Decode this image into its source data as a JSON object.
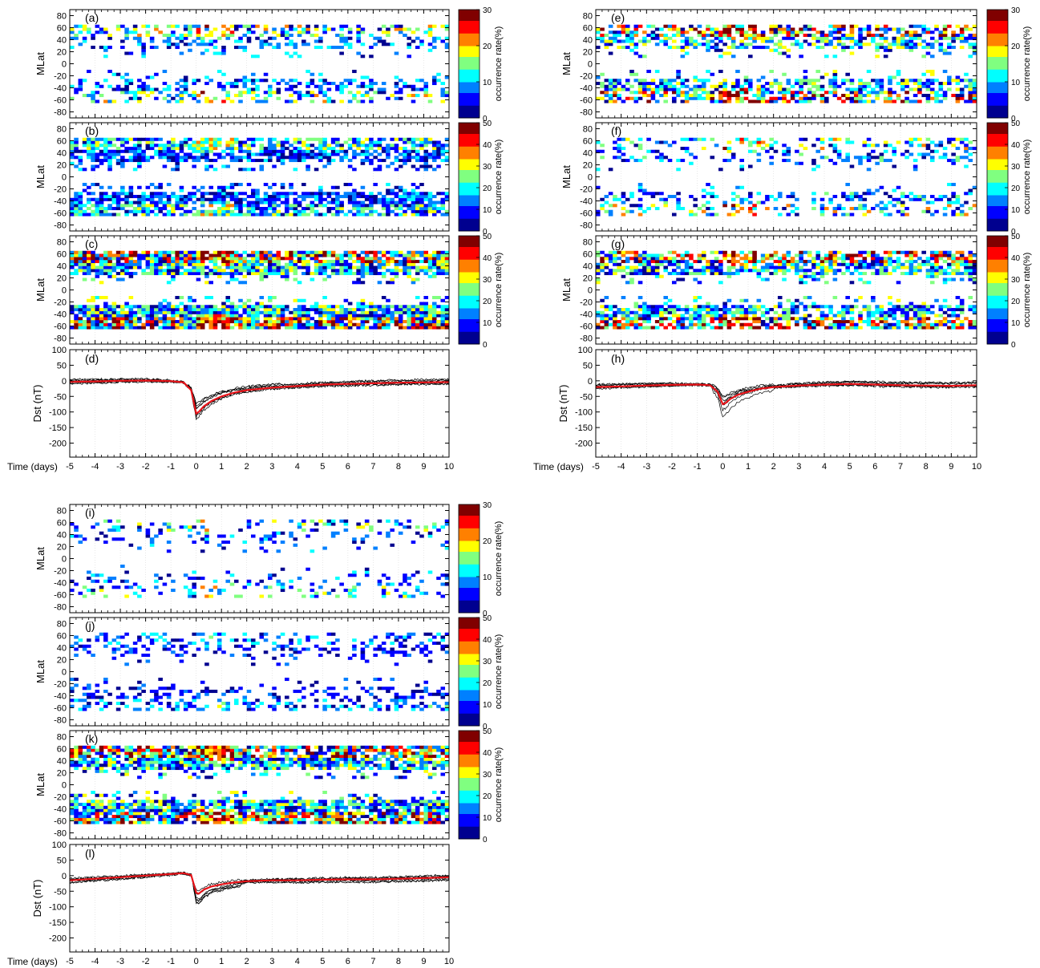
{
  "figure": {
    "x_axis_label": "Time (days)",
    "mlat_label": "MLat",
    "dst_label": "Dst (nT)",
    "colorbar_label": "occurrence rate(%)"
  },
  "colormap": [
    "#00008f",
    "#0000ff",
    "#0080ff",
    "#00ffff",
    "#80ff80",
    "#ffff00",
    "#ff8000",
    "#ff0000",
    "#800000"
  ],
  "chart_data": [
    {
      "panel": "(a)",
      "type": "heatmap",
      "ylabel": "MLat",
      "xlim": [
        -5,
        10
      ],
      "ylim": [
        -90,
        90
      ],
      "x_ticks": [
        -5,
        -4,
        -3,
        -2,
        -1,
        0,
        1,
        2,
        3,
        4,
        5,
        6,
        7,
        8,
        9,
        10
      ],
      "y_ticks": [
        -80,
        -60,
        -40,
        -20,
        0,
        20,
        40,
        60,
        80
      ],
      "colorbar_label": "occurrence rate(%)",
      "clim": [
        0,
        30
      ],
      "colorbar_ticks": [
        0,
        10,
        20,
        30
      ],
      "density": 0.38,
      "levels": [
        0.05,
        0.7
      ]
    },
    {
      "panel": "(b)",
      "type": "heatmap",
      "ylabel": "MLat",
      "xlim": [
        -5,
        10
      ],
      "ylim": [
        -90,
        90
      ],
      "x_ticks": [
        -5,
        -4,
        -3,
        -2,
        -1,
        0,
        1,
        2,
        3,
        4,
        5,
        6,
        7,
        8,
        9,
        10
      ],
      "y_ticks": [
        -80,
        -60,
        -40,
        -20,
        0,
        20,
        40,
        60,
        80
      ],
      "colorbar_label": "occurrence rate(%)",
      "clim": [
        0,
        50
      ],
      "colorbar_ticks": [
        0,
        10,
        20,
        30,
        40,
        50
      ],
      "density": 0.72,
      "levels": [
        0.05,
        0.6
      ]
    },
    {
      "panel": "(c)",
      "type": "heatmap",
      "ylabel": "MLat",
      "xlim": [
        -5,
        10
      ],
      "ylim": [
        -90,
        90
      ],
      "x_ticks": [
        -5,
        -4,
        -3,
        -2,
        -1,
        0,
        1,
        2,
        3,
        4,
        5,
        6,
        7,
        8,
        9,
        10
      ],
      "y_ticks": [
        -80,
        -60,
        -40,
        -20,
        0,
        20,
        40,
        60,
        80
      ],
      "colorbar_label": "occurrence rate(%)",
      "clim": [
        0,
        50
      ],
      "colorbar_ticks": [
        0,
        10,
        20,
        30,
        40,
        50
      ],
      "density": 0.85,
      "levels": [
        0.05,
        1.0
      ]
    },
    {
      "panel": "(d)",
      "type": "line",
      "ylabel": "Dst (nT)",
      "xlabel": "Time (days)",
      "xlim": [
        -5,
        10
      ],
      "ylim": [
        -245,
        100
      ],
      "x_ticks": [
        -5,
        -4,
        -3,
        -2,
        -1,
        0,
        1,
        2,
        3,
        4,
        5,
        6,
        7,
        8,
        9,
        10
      ],
      "y_ticks": [
        -200,
        -150,
        -100,
        -50,
        0,
        50,
        100
      ],
      "mean": {
        "x": [
          -5,
          -4,
          -3,
          -2,
          -1,
          -0.5,
          -0.2,
          0,
          0.1,
          0.3,
          0.6,
          1,
          1.5,
          2,
          3,
          4,
          5,
          6,
          7,
          8,
          9,
          10
        ],
        "y": [
          -3,
          -2,
          0,
          1,
          -1,
          -5,
          -30,
          -105,
          -100,
          -82,
          -65,
          -50,
          -38,
          -30,
          -22,
          -17,
          -12,
          -10,
          -8,
          -6,
          -5,
          -4
        ]
      }
    },
    {
      "panel": "(e)",
      "type": "heatmap",
      "ylabel": "MLat",
      "xlim": [
        -5,
        10
      ],
      "ylim": [
        -90,
        90
      ],
      "x_ticks": [
        -5,
        -4,
        -3,
        -2,
        -1,
        0,
        1,
        2,
        3,
        4,
        5,
        6,
        7,
        8,
        9,
        10
      ],
      "y_ticks": [
        -80,
        -60,
        -40,
        -20,
        0,
        20,
        40,
        60,
        80
      ],
      "colorbar_label": "occurrence rate(%)",
      "clim": [
        0,
        30
      ],
      "colorbar_ticks": [
        0,
        10,
        20,
        30
      ],
      "density": 0.6,
      "levels": [
        0.05,
        1.0
      ]
    },
    {
      "panel": "(f)",
      "type": "heatmap",
      "ylabel": "MLat",
      "xlim": [
        -5,
        10
      ],
      "ylim": [
        -90,
        90
      ],
      "x_ticks": [
        -5,
        -4,
        -3,
        -2,
        -1,
        0,
        1,
        2,
        3,
        4,
        5,
        6,
        7,
        8,
        9,
        10
      ],
      "y_ticks": [
        -80,
        -60,
        -40,
        -20,
        0,
        20,
        40,
        60,
        80
      ],
      "colorbar_label": "occurrence rate(%)",
      "clim": [
        0,
        50
      ],
      "colorbar_ticks": [
        0,
        10,
        20,
        30,
        40,
        50
      ],
      "density": 0.3,
      "levels": [
        0.05,
        0.75
      ]
    },
    {
      "panel": "(g)",
      "type": "heatmap",
      "ylabel": "MLat",
      "xlim": [
        -5,
        10
      ],
      "ylim": [
        -90,
        90
      ],
      "x_ticks": [
        -5,
        -4,
        -3,
        -2,
        -1,
        0,
        1,
        2,
        3,
        4,
        5,
        6,
        7,
        8,
        9,
        10
      ],
      "y_ticks": [
        -80,
        -60,
        -40,
        -20,
        0,
        20,
        40,
        60,
        80
      ],
      "colorbar_label": "occurrence rate(%)",
      "clim": [
        0,
        50
      ],
      "colorbar_ticks": [
        0,
        10,
        20,
        30,
        40,
        50
      ],
      "density": 0.68,
      "levels": [
        0.05,
        1.0
      ]
    },
    {
      "panel": "(h)",
      "type": "line",
      "ylabel": "Dst (nT)",
      "xlabel": "Time (days)",
      "xlim": [
        -5,
        10
      ],
      "ylim": [
        -245,
        100
      ],
      "x_ticks": [
        -5,
        -4,
        -3,
        -2,
        -1,
        0,
        1,
        2,
        3,
        4,
        5,
        6,
        7,
        8,
        9,
        10
      ],
      "y_ticks": [
        -200,
        -150,
        -100,
        -50,
        0,
        50,
        100
      ],
      "mean": {
        "x": [
          -5,
          -4,
          -3,
          -2,
          -1,
          -0.5,
          -0.2,
          0,
          0.1,
          0.3,
          0.6,
          1,
          1.5,
          2,
          3,
          4,
          5,
          6,
          7,
          8,
          9,
          10
        ],
        "y": [
          -20,
          -18,
          -15,
          -13,
          -12,
          -14,
          -35,
          -75,
          -72,
          -58,
          -45,
          -35,
          -25,
          -20,
          -15,
          -12,
          -10,
          -12,
          -14,
          -15,
          -16,
          -14
        ]
      }
    },
    {
      "panel": "(i)",
      "type": "heatmap",
      "ylabel": "MLat",
      "xlim": [
        -5,
        10
      ],
      "ylim": [
        -90,
        90
      ],
      "x_ticks": [
        -5,
        -4,
        -3,
        -2,
        -1,
        0,
        1,
        2,
        3,
        4,
        5,
        6,
        7,
        8,
        9,
        10
      ],
      "y_ticks": [
        -80,
        -60,
        -40,
        -20,
        0,
        20,
        40,
        60,
        80
      ],
      "colorbar_label": "occurrence rate(%)",
      "clim": [
        0,
        30
      ],
      "colorbar_ticks": [
        0,
        10,
        20,
        30
      ],
      "density": 0.22,
      "levels": [
        0.05,
        0.6
      ]
    },
    {
      "panel": "(j)",
      "type": "heatmap",
      "ylabel": "MLat",
      "xlim": [
        -5,
        10
      ],
      "ylim": [
        -90,
        90
      ],
      "x_ticks": [
        -5,
        -4,
        -3,
        -2,
        -1,
        0,
        1,
        2,
        3,
        4,
        5,
        6,
        7,
        8,
        9,
        10
      ],
      "y_ticks": [
        -80,
        -60,
        -40,
        -20,
        0,
        20,
        40,
        60,
        80
      ],
      "colorbar_label": "occurrence rate(%)",
      "clim": [
        0,
        50
      ],
      "colorbar_ticks": [
        0,
        10,
        20,
        30,
        40,
        50
      ],
      "density": 0.3,
      "levels": [
        0.05,
        0.45
      ]
    },
    {
      "panel": "(k)",
      "type": "heatmap",
      "ylabel": "MLat",
      "xlim": [
        -5,
        10
      ],
      "ylim": [
        -90,
        90
      ],
      "x_ticks": [
        -5,
        -4,
        -3,
        -2,
        -1,
        0,
        1,
        2,
        3,
        4,
        5,
        6,
        7,
        8,
        9,
        10
      ],
      "y_ticks": [
        -80,
        -60,
        -40,
        -20,
        0,
        20,
        40,
        60,
        80
      ],
      "colorbar_label": "occurrence rate(%)",
      "clim": [
        0,
        50
      ],
      "colorbar_ticks": [
        0,
        10,
        20,
        30,
        40,
        50
      ],
      "density": 0.8,
      "levels": [
        0.05,
        1.0
      ]
    },
    {
      "panel": "(l)",
      "type": "line",
      "ylabel": "Dst (nT)",
      "xlabel": "Time (days)",
      "xlim": [
        -5,
        10
      ],
      "ylim": [
        -245,
        100
      ],
      "x_ticks": [
        -5,
        -4,
        -3,
        -2,
        -1,
        0,
        1,
        2,
        3,
        4,
        5,
        6,
        7,
        8,
        9,
        10
      ],
      "y_ticks": [
        -200,
        -150,
        -100,
        -50,
        0,
        50,
        100
      ],
      "mean": {
        "x": [
          -5,
          -4,
          -3,
          -2,
          -1,
          -0.5,
          -0.2,
          0,
          0.1,
          0.3,
          0.6,
          1,
          1.5,
          2,
          3,
          4,
          5,
          6,
          7,
          8,
          9,
          10
        ],
        "y": [
          -15,
          -10,
          -5,
          0,
          5,
          8,
          2,
          -55,
          -58,
          -45,
          -35,
          -28,
          -22,
          -18,
          -15,
          -15,
          -13,
          -12,
          -12,
          -10,
          -8,
          -5
        ]
      }
    }
  ]
}
